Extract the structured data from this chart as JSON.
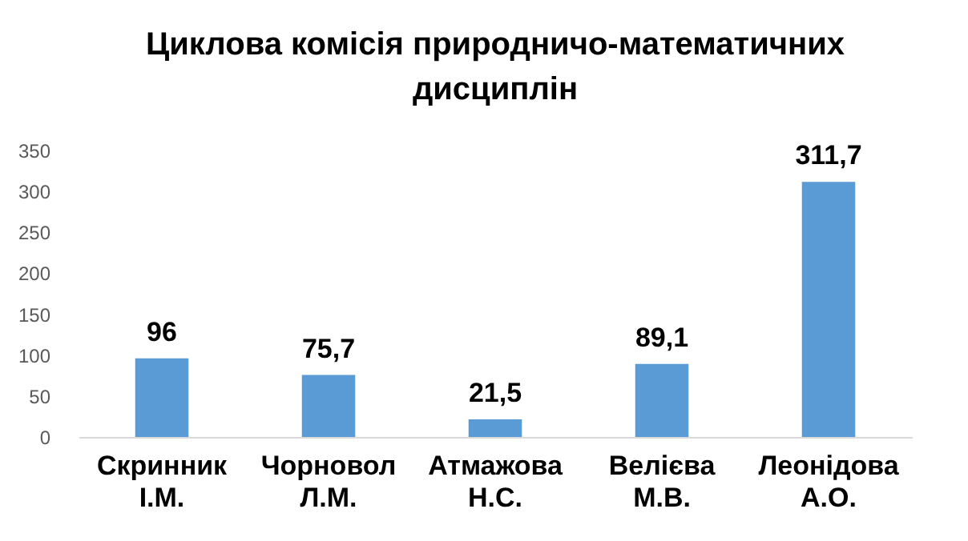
{
  "chart_data": {
    "type": "bar",
    "title": "Циклова комісія природничо-математичних дисциплін",
    "categories": [
      "Скринник І.М.",
      "Чорновол Л.М.",
      "Атмажова Н.С.",
      "Велієва М.В.",
      "Леонідова А.О."
    ],
    "values": [
      96,
      75.7,
      21.5,
      89.1,
      311.7
    ],
    "value_labels": [
      "96",
      "75,7",
      "21,5",
      "89,1",
      "311,7"
    ],
    "color": "#5b9bd5",
    "ylim": [
      0,
      350
    ],
    "yticks": [
      0,
      50,
      100,
      150,
      200,
      250,
      300,
      350
    ],
    "grid": false
  }
}
